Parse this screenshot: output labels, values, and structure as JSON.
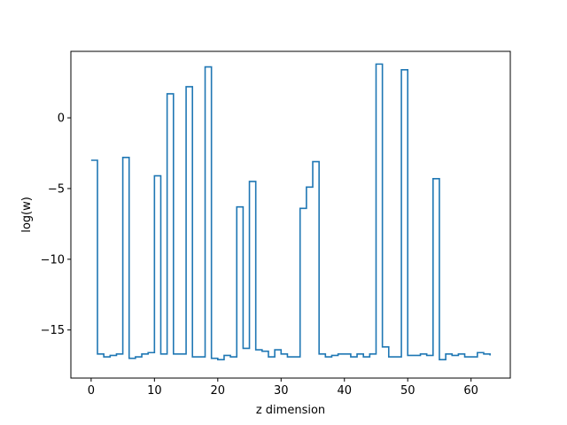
{
  "chart_data": {
    "type": "line",
    "drawstyle": "steps-post",
    "title": "",
    "xlabel": "z dimension",
    "ylabel": "log(w)",
    "xlim": [
      -3.2,
      66.2
    ],
    "ylim": [
      -18.4,
      4.7
    ],
    "xticks": [
      0,
      10,
      20,
      30,
      40,
      50,
      60
    ],
    "yticks": [
      -15,
      -10,
      -5,
      0
    ],
    "grid": false,
    "legend": "none",
    "series": [
      {
        "color": "#1f77b4",
        "x": [
          0,
          1,
          2,
          3,
          4,
          5,
          6,
          7,
          8,
          9,
          10,
          11,
          12,
          13,
          14,
          15,
          16,
          17,
          18,
          19,
          20,
          21,
          22,
          23,
          24,
          25,
          26,
          27,
          28,
          29,
          30,
          31,
          32,
          33,
          34,
          35,
          36,
          37,
          38,
          39,
          40,
          41,
          42,
          43,
          44,
          45,
          46,
          47,
          48,
          49,
          50,
          51,
          52,
          53,
          54,
          55,
          56,
          57,
          58,
          59,
          60,
          61,
          62,
          63
        ],
        "values": [
          -3.0,
          -16.7,
          -16.9,
          -16.8,
          -16.7,
          -2.8,
          -17.0,
          -16.9,
          -16.7,
          -16.6,
          -4.1,
          -16.7,
          1.7,
          -16.7,
          -16.7,
          2.2,
          -16.9,
          -16.9,
          3.6,
          -17.0,
          -17.1,
          -16.8,
          -16.9,
          -6.3,
          -16.3,
          -4.5,
          -16.4,
          -16.5,
          -16.9,
          -16.4,
          -16.7,
          -16.9,
          -16.9,
          -6.4,
          -4.9,
          -3.1,
          -16.7,
          -16.9,
          -16.8,
          -16.7,
          -16.7,
          -16.9,
          -16.7,
          -16.9,
          -16.7,
          3.8,
          -16.2,
          -16.9,
          -16.9,
          3.4,
          -16.8,
          -16.8,
          -16.7,
          -16.8,
          -4.3,
          -17.1,
          -16.7,
          -16.8,
          -16.7,
          -16.9,
          -16.9,
          -16.6,
          -16.7,
          -16.8
        ]
      }
    ]
  }
}
